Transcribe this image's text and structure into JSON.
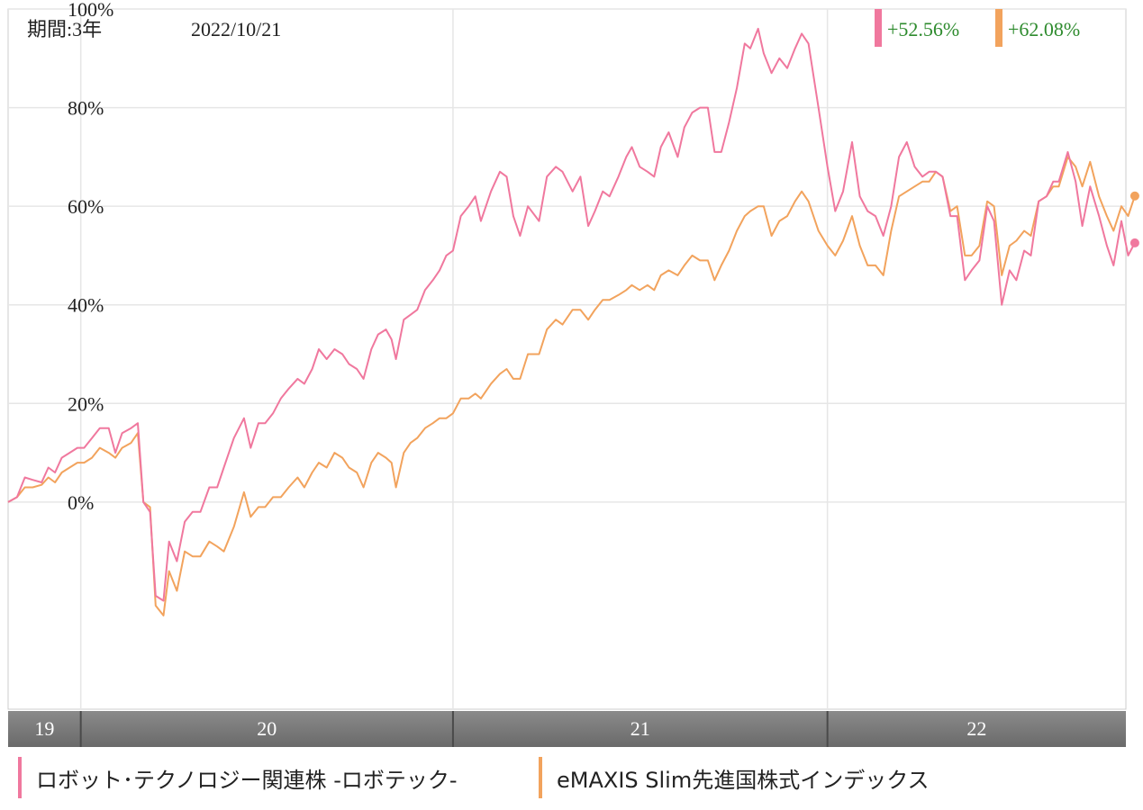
{
  "chart_data": {
    "type": "line",
    "header": {
      "period_label": "期間:3年",
      "date_label": "2022/10/21"
    },
    "y_tick_labels": [
      "100%",
      "80%",
      "60%",
      "40%",
      "20%",
      "0%"
    ],
    "y_ticks": [
      100,
      80,
      60,
      40,
      20,
      0
    ],
    "ylim": [
      -42,
      100
    ],
    "year_labels": [
      "19",
      "20",
      "21",
      "22"
    ],
    "x_range": [
      0,
      1000
    ],
    "year_boundaries": [
      65,
      398,
      733
    ],
    "grid": true,
    "legend_position": "bottom",
    "series": [
      {
        "name": "ロボット･テクノロジー関連株 -ロボテック-",
        "return_label": "+52.56%",
        "color": "#f0789e",
        "points": [
          [
            0,
            0
          ],
          [
            8,
            1
          ],
          [
            15,
            5
          ],
          [
            22,
            4.5
          ],
          [
            30,
            4
          ],
          [
            36,
            7
          ],
          [
            42,
            6
          ],
          [
            48,
            9
          ],
          [
            55,
            10
          ],
          [
            62,
            11
          ],
          [
            68,
            11
          ],
          [
            75,
            13
          ],
          [
            82,
            15
          ],
          [
            90,
            15
          ],
          [
            96,
            10
          ],
          [
            102,
            14
          ],
          [
            110,
            15
          ],
          [
            116,
            16
          ],
          [
            121,
            0
          ],
          [
            127,
            -2
          ],
          [
            132,
            -19
          ],
          [
            139,
            -20
          ],
          [
            144,
            -8
          ],
          [
            151,
            -12
          ],
          [
            158,
            -4
          ],
          [
            165,
            -2
          ],
          [
            172,
            -2
          ],
          [
            180,
            3
          ],
          [
            187,
            3
          ],
          [
            193,
            7
          ],
          [
            202,
            13
          ],
          [
            211,
            17
          ],
          [
            217,
            11
          ],
          [
            224,
            16
          ],
          [
            230,
            16
          ],
          [
            237,
            18
          ],
          [
            244,
            21
          ],
          [
            251,
            23
          ],
          [
            259,
            25
          ],
          [
            265,
            24
          ],
          [
            272,
            27
          ],
          [
            278,
            31
          ],
          [
            285,
            29
          ],
          [
            292,
            31
          ],
          [
            299,
            30
          ],
          [
            305,
            28
          ],
          [
            312,
            27
          ],
          [
            318,
            25
          ],
          [
            325,
            31
          ],
          [
            331,
            34
          ],
          [
            338,
            35
          ],
          [
            343,
            33
          ],
          [
            347,
            29
          ],
          [
            354,
            37
          ],
          [
            360,
            38
          ],
          [
            366,
            39
          ],
          [
            373,
            43
          ],
          [
            380,
            45
          ],
          [
            386,
            47
          ],
          [
            392,
            50
          ],
          [
            398,
            51
          ],
          [
            405,
            58
          ],
          [
            412,
            60
          ],
          [
            418,
            62
          ],
          [
            423,
            57
          ],
          [
            432,
            63
          ],
          [
            440,
            67
          ],
          [
            446,
            66
          ],
          [
            452,
            58
          ],
          [
            458,
            54
          ],
          [
            465,
            60
          ],
          [
            475,
            57
          ],
          [
            482,
            66
          ],
          [
            490,
            68
          ],
          [
            496,
            67
          ],
          [
            505,
            63
          ],
          [
            512,
            66
          ],
          [
            519,
            56
          ],
          [
            525,
            59
          ],
          [
            532,
            63
          ],
          [
            538,
            62
          ],
          [
            546,
            66
          ],
          [
            553,
            70
          ],
          [
            558,
            72
          ],
          [
            565,
            68
          ],
          [
            572,
            67
          ],
          [
            578,
            66
          ],
          [
            584,
            72
          ],
          [
            591,
            75
          ],
          [
            599,
            70
          ],
          [
            605,
            76
          ],
          [
            612,
            79
          ],
          [
            619,
            80
          ],
          [
            626,
            80
          ],
          [
            632,
            71
          ],
          [
            638,
            71
          ],
          [
            645,
            77
          ],
          [
            652,
            84
          ],
          [
            659,
            93
          ],
          [
            664,
            92
          ],
          [
            671,
            96
          ],
          [
            676,
            91
          ],
          [
            683,
            87
          ],
          [
            690,
            90
          ],
          [
            697,
            88
          ],
          [
            704,
            92
          ],
          [
            710,
            95
          ],
          [
            716,
            93
          ],
          [
            725,
            80
          ],
          [
            733,
            68
          ],
          [
            740,
            59
          ],
          [
            747,
            63
          ],
          [
            755,
            73
          ],
          [
            762,
            62
          ],
          [
            769,
            59
          ],
          [
            776,
            58
          ],
          [
            783,
            54
          ],
          [
            790,
            60
          ],
          [
            797,
            70
          ],
          [
            804,
            73
          ],
          [
            811,
            68
          ],
          [
            818,
            66
          ],
          [
            824,
            67
          ],
          [
            830,
            67
          ],
          [
            836,
            66
          ],
          [
            843,
            58
          ],
          [
            849,
            58
          ],
          [
            856,
            45
          ],
          [
            862,
            47
          ],
          [
            869,
            49
          ],
          [
            876,
            60
          ],
          [
            882,
            57
          ],
          [
            889,
            40
          ],
          [
            896,
            47
          ],
          [
            902,
            45
          ],
          [
            909,
            51
          ],
          [
            915,
            50
          ],
          [
            922,
            61
          ],
          [
            929,
            62
          ],
          [
            935,
            65
          ],
          [
            940,
            65
          ],
          [
            948,
            71
          ],
          [
            955,
            65
          ],
          [
            961,
            56
          ],
          [
            968,
            64
          ],
          [
            976,
            58
          ],
          [
            983,
            52
          ],
          [
            989,
            48
          ],
          [
            996,
            57
          ],
          [
            1002,
            50
          ],
          [
            1008,
            52.56
          ]
        ]
      },
      {
        "name": "eMAXIS Slim先進国株式インデックス",
        "return_label": "+62.08%",
        "color": "#f2a35d",
        "points": [
          [
            0,
            0
          ],
          [
            8,
            1
          ],
          [
            15,
            3
          ],
          [
            22,
            3
          ],
          [
            30,
            3.5
          ],
          [
            36,
            5
          ],
          [
            42,
            4
          ],
          [
            48,
            6
          ],
          [
            55,
            7
          ],
          [
            62,
            8
          ],
          [
            68,
            8
          ],
          [
            75,
            9
          ],
          [
            82,
            11
          ],
          [
            90,
            10
          ],
          [
            96,
            9
          ],
          [
            102,
            11
          ],
          [
            110,
            12
          ],
          [
            116,
            14
          ],
          [
            121,
            0
          ],
          [
            127,
            -1
          ],
          [
            132,
            -21
          ],
          [
            139,
            -23
          ],
          [
            144,
            -14
          ],
          [
            151,
            -18
          ],
          [
            158,
            -10
          ],
          [
            165,
            -11
          ],
          [
            172,
            -11
          ],
          [
            180,
            -8
          ],
          [
            187,
            -9
          ],
          [
            193,
            -10
          ],
          [
            202,
            -5
          ],
          [
            211,
            2
          ],
          [
            217,
            -3
          ],
          [
            224,
            -1
          ],
          [
            230,
            -1
          ],
          [
            237,
            1
          ],
          [
            244,
            1
          ],
          [
            251,
            3
          ],
          [
            259,
            5
          ],
          [
            265,
            3
          ],
          [
            272,
            6
          ],
          [
            278,
            8
          ],
          [
            285,
            7
          ],
          [
            292,
            10
          ],
          [
            299,
            9
          ],
          [
            305,
            7
          ],
          [
            312,
            6
          ],
          [
            318,
            3
          ],
          [
            325,
            8
          ],
          [
            331,
            10
          ],
          [
            338,
            9
          ],
          [
            343,
            8
          ],
          [
            347,
            3
          ],
          [
            354,
            10
          ],
          [
            360,
            12
          ],
          [
            366,
            13
          ],
          [
            373,
            15
          ],
          [
            380,
            16
          ],
          [
            386,
            17
          ],
          [
            392,
            17
          ],
          [
            398,
            18
          ],
          [
            405,
            21
          ],
          [
            412,
            21
          ],
          [
            418,
            22
          ],
          [
            423,
            21
          ],
          [
            432,
            24
          ],
          [
            440,
            26
          ],
          [
            446,
            27
          ],
          [
            452,
            25
          ],
          [
            458,
            25
          ],
          [
            465,
            30
          ],
          [
            475,
            30
          ],
          [
            482,
            35
          ],
          [
            490,
            37
          ],
          [
            496,
            36
          ],
          [
            505,
            39
          ],
          [
            512,
            39
          ],
          [
            519,
            37
          ],
          [
            525,
            39
          ],
          [
            532,
            41
          ],
          [
            538,
            41
          ],
          [
            546,
            42
          ],
          [
            553,
            43
          ],
          [
            558,
            44
          ],
          [
            565,
            43
          ],
          [
            572,
            44
          ],
          [
            578,
            43
          ],
          [
            584,
            46
          ],
          [
            591,
            47
          ],
          [
            599,
            46
          ],
          [
            605,
            48
          ],
          [
            612,
            50
          ],
          [
            619,
            49
          ],
          [
            626,
            49
          ],
          [
            632,
            45
          ],
          [
            638,
            48
          ],
          [
            645,
            51
          ],
          [
            652,
            55
          ],
          [
            659,
            58
          ],
          [
            664,
            59
          ],
          [
            671,
            60
          ],
          [
            676,
            60
          ],
          [
            683,
            54
          ],
          [
            690,
            57
          ],
          [
            697,
            58
          ],
          [
            704,
            61
          ],
          [
            710,
            63
          ],
          [
            716,
            61
          ],
          [
            725,
            55
          ],
          [
            733,
            52
          ],
          [
            740,
            50
          ],
          [
            747,
            53
          ],
          [
            755,
            58
          ],
          [
            762,
            52
          ],
          [
            769,
            48
          ],
          [
            776,
            48
          ],
          [
            783,
            46
          ],
          [
            790,
            55
          ],
          [
            797,
            62
          ],
          [
            804,
            63
          ],
          [
            811,
            64
          ],
          [
            818,
            65
          ],
          [
            824,
            65
          ],
          [
            830,
            67
          ],
          [
            836,
            66
          ],
          [
            843,
            59
          ],
          [
            849,
            60
          ],
          [
            856,
            50
          ],
          [
            862,
            50
          ],
          [
            869,
            52
          ],
          [
            876,
            61
          ],
          [
            882,
            60
          ],
          [
            889,
            46
          ],
          [
            896,
            52
          ],
          [
            902,
            53
          ],
          [
            909,
            55
          ],
          [
            915,
            54
          ],
          [
            922,
            61
          ],
          [
            929,
            62
          ],
          [
            935,
            64
          ],
          [
            940,
            64
          ],
          [
            948,
            70
          ],
          [
            955,
            68
          ],
          [
            961,
            64
          ],
          [
            968,
            69
          ],
          [
            976,
            62
          ],
          [
            983,
            58
          ],
          [
            989,
            55
          ],
          [
            996,
            60
          ],
          [
            1002,
            58
          ],
          [
            1008,
            62.08
          ]
        ]
      }
    ]
  }
}
